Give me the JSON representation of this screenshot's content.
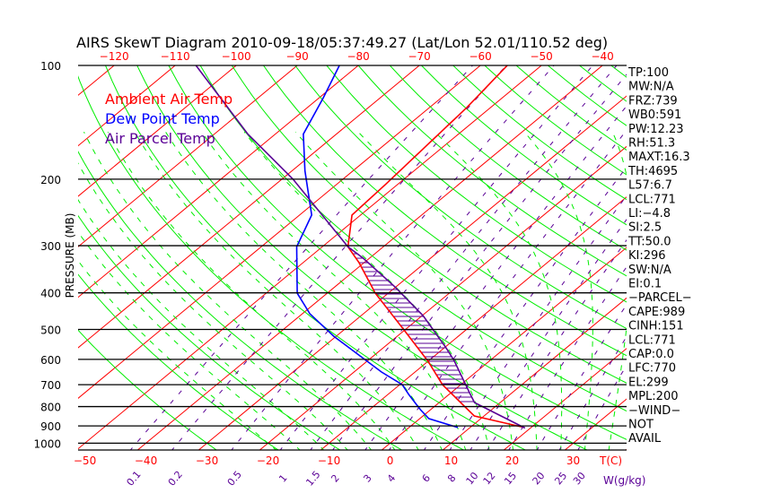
{
  "chart_data": {
    "type": "line",
    "title": "AIRS SkewT Diagram 2010-09-18/05:37:49.27 (Lat/Lon 52.01/110.52 deg)",
    "ylabel": "PRESSURE (MB)",
    "xlabel": "T(C)",
    "mixing_ratio_label": "W(g/kg)",
    "y_scale": "log",
    "ylim": [
      1000,
      100
    ],
    "pressure_ticks": [
      100,
      200,
      300,
      400,
      500,
      600,
      700,
      800,
      900,
      1000
    ],
    "bottom_temp_ticks": [
      -50,
      -40,
      -30,
      -20,
      -10,
      0,
      10,
      20,
      30
    ],
    "top_temp_ticks": [
      -120,
      -110,
      -100,
      -90,
      -80,
      -70,
      -60,
      -50,
      -40
    ],
    "mixing_ratio_ticks": [
      0.1,
      0.2,
      0.5,
      1,
      1.5,
      2,
      3,
      4,
      6,
      8,
      10,
      12,
      15,
      20,
      25,
      30
    ],
    "legend": [
      {
        "label": "Ambient Air Temp",
        "color": "#ff0000"
      },
      {
        "label": "Dew Point Temp",
        "color": "#0000ff"
      },
      {
        "label": "Air Parcel Temp",
        "color": "#5a0096"
      }
    ],
    "series": [
      {
        "name": "Ambient Air Temp",
        "color": "#ff0000",
        "p": [
          909,
          847,
          700,
          607,
          501,
          401,
          333,
          302,
          249,
          206,
          129,
          100
        ],
        "t": [
          18.9,
          8.4,
          -3.0,
          -10.0,
          -20.2,
          -32.1,
          -40.8,
          -45.8,
          -51.4,
          -52.0,
          -53.9,
          -55.6
        ]
      },
      {
        "name": "Dew Point Temp",
        "color": "#0000ff",
        "p": [
          909,
          861,
          815,
          743,
          700,
          648,
          597,
          521,
          454,
          401,
          302,
          249,
          190,
          152,
          122,
          100
        ],
        "t": [
          8.0,
          1.5,
          -1.7,
          -6.6,
          -9.6,
          -15.5,
          -21.1,
          -30.4,
          -38.8,
          -44.9,
          -54.2,
          -58.0,
          -67.9,
          -75.4,
          -79.3,
          -83.1
        ]
      },
      {
        "name": "Air Parcel Temp",
        "color": "#5a0096",
        "p": [
          912,
          781,
          735,
          604,
          556,
          460,
          386,
          324,
          302,
          200,
          152,
          100
        ],
        "t": [
          19.1,
          5.8,
          3.0,
          -5.9,
          -10.0,
          -19.8,
          -30.1,
          -41.0,
          -45.8,
          -68.2,
          -84.5,
          -106.6
        ]
      }
    ],
    "cape_hatch_range_mb": [
      300,
      780
    ],
    "indices": [
      "TP:100",
      "MW:N/A",
      "FRZ:739",
      "WB0:591",
      "PW:12.23",
      "RH:51.3",
      "MAXT:16.3",
      "TH:4695",
      "L57:6.7",
      "LCL:771",
      "LI:−4.8",
      "SI:2.5",
      "TT:50.0",
      "KI:296",
      "SW:N/A",
      "EI:0.1",
      "−PARCEL−",
      "CAPE:989",
      "CINH:151",
      "LCL:771",
      "CAP:0.0",
      "LFC:770",
      "EL:299",
      "MPL:200",
      "−WIND−",
      "NOT",
      "AVAIL"
    ]
  }
}
